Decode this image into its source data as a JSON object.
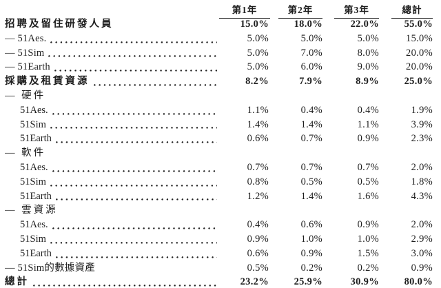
{
  "colors": {
    "background": "#ffffff",
    "text": "#1e1e1e",
    "rule": "#222222"
  },
  "table": {
    "columns": [
      "第1年",
      "第2年",
      "第3年",
      "總計"
    ],
    "rows": [
      {
        "label": "招聘及留住研發人員",
        "style": "section",
        "leader": false,
        "values": [
          "15.0%",
          "18.0%",
          "22.0%",
          "55.0%"
        ]
      },
      {
        "label": "— 51Aes.",
        "style": "item-l1",
        "leader": true,
        "values": [
          "5.0%",
          "5.0%",
          "5.0%",
          "15.0%"
        ]
      },
      {
        "label": "— 51Sim",
        "style": "item-l1",
        "leader": true,
        "values": [
          "5.0%",
          "7.0%",
          "8.0%",
          "20.0%"
        ]
      },
      {
        "label": "— 51Earth",
        "style": "item-l1",
        "leader": true,
        "values": [
          "5.0%",
          "6.0%",
          "9.0%",
          "20.0%"
        ]
      },
      {
        "label": "採購及租賃資源",
        "style": "section",
        "leader": true,
        "values": [
          "8.2%",
          "7.9%",
          "8.9%",
          "25.0%"
        ]
      },
      {
        "label": "— 硬件",
        "style": "subhead",
        "leader": false,
        "values": [
          "",
          "",
          "",
          ""
        ]
      },
      {
        "label": "51Aes.",
        "style": "item-l2",
        "leader": true,
        "values": [
          "1.1%",
          "0.4%",
          "0.4%",
          "1.9%"
        ]
      },
      {
        "label": "51Sim",
        "style": "item-l2",
        "leader": true,
        "values": [
          "1.4%",
          "1.4%",
          "1.1%",
          "3.9%"
        ]
      },
      {
        "label": "51Earth",
        "style": "item-l2",
        "leader": true,
        "values": [
          "0.6%",
          "0.7%",
          "0.9%",
          "2.3%"
        ]
      },
      {
        "label": "— 軟件",
        "style": "subhead",
        "leader": false,
        "values": [
          "",
          "",
          "",
          ""
        ]
      },
      {
        "label": "51Aes.",
        "style": "item-l2",
        "leader": true,
        "values": [
          "0.7%",
          "0.7%",
          "0.7%",
          "2.0%"
        ]
      },
      {
        "label": "51Sim",
        "style": "item-l2",
        "leader": true,
        "values": [
          "0.8%",
          "0.5%",
          "0.5%",
          "1.8%"
        ]
      },
      {
        "label": "51Earth",
        "style": "item-l2",
        "leader": true,
        "values": [
          "1.2%",
          "1.4%",
          "1.6%",
          "4.3%"
        ]
      },
      {
        "label": "— 雲資源",
        "style": "subhead",
        "leader": false,
        "values": [
          "",
          "",
          "",
          ""
        ]
      },
      {
        "label": "51Aes.",
        "style": "item-l2",
        "leader": true,
        "values": [
          "0.4%",
          "0.6%",
          "0.9%",
          "2.0%"
        ]
      },
      {
        "label": "51Sim",
        "style": "item-l2",
        "leader": true,
        "values": [
          "0.9%",
          "1.0%",
          "1.0%",
          "2.9%"
        ]
      },
      {
        "label": "51Earth",
        "style": "item-l2",
        "leader": true,
        "values": [
          "0.6%",
          "0.9%",
          "1.5%",
          "3.0%"
        ]
      },
      {
        "label": "— 51Sim的數據資產",
        "style": "item-l1",
        "leader": false,
        "values": [
          "0.5%",
          "0.2%",
          "0.2%",
          "0.9%"
        ]
      },
      {
        "label": "總計",
        "style": "total",
        "leader": true,
        "values": [
          "23.2%",
          "25.9%",
          "30.9%",
          "80.0%"
        ]
      }
    ]
  }
}
